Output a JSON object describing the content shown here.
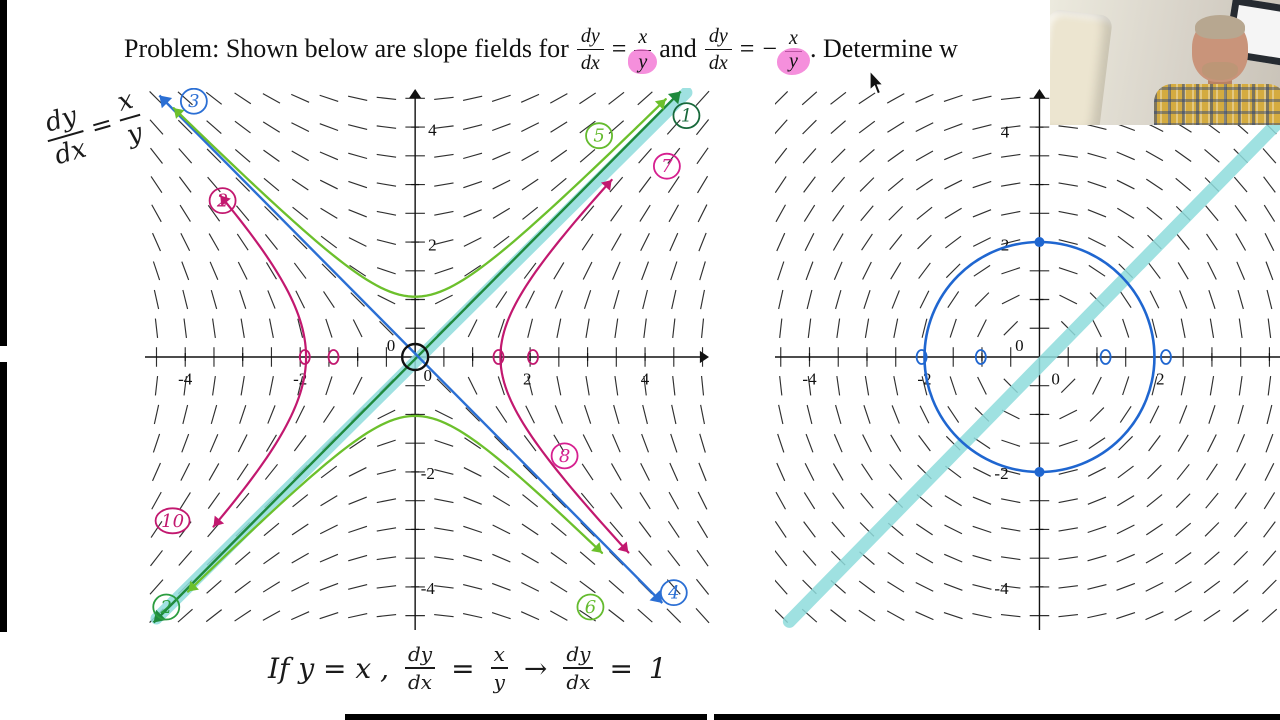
{
  "title": {
    "prefix": "Problem: Shown below are slope fields for",
    "frac1": {
      "num": "dy",
      "den": "dx"
    },
    "eq1": "=",
    "frac2": {
      "num": "x",
      "den": "y"
    },
    "and": "and",
    "frac3": {
      "num": "dy",
      "den": "dx"
    },
    "eq2": "=",
    "minus": "−",
    "frac4": {
      "num": "x",
      "den": "y"
    },
    "suffix": ".  Determine w"
  },
  "hand_topleft": {
    "num": "dy",
    "den": "dx",
    "eq": "=",
    "rnum": "x",
    "rden": "y"
  },
  "hand_bottom": {
    "lead": "If  y = x ,",
    "f1num": "dy",
    "f1den": "dx",
    "eq1": "=",
    "f2num": "x",
    "f2den": "y",
    "arrow": "→",
    "f3num": "dy",
    "f3den": "dx",
    "eq2": "=",
    "result": "1"
  },
  "highlight_color": "#f26ad0",
  "marker_color": "#8fdcdc",
  "chart_data": [
    {
      "type": "slope_field",
      "equation": "dy/dx = x/y",
      "slope": "x/y",
      "xlim": [
        -4.7,
        5.13
      ],
      "ylim": [
        -4.75,
        4.68
      ],
      "ticks": [
        -4,
        -3,
        -2,
        -1,
        1,
        2,
        3,
        4
      ],
      "axis_labels": [
        {
          "text": "-4",
          "x": -4,
          "y": -0.48
        },
        {
          "text": "-2",
          "x": -2,
          "y": -0.48
        },
        {
          "text": "2",
          "x": 1.95,
          "y": -0.48
        },
        {
          "text": "4",
          "x": 4,
          "y": -0.48
        },
        {
          "text": "0",
          "x": 0.22,
          "y": -0.42
        },
        {
          "text": "0",
          "x": -0.42,
          "y": 0.1
        },
        {
          "text": "4",
          "x": 0.3,
          "y": 3.85
        },
        {
          "text": "2",
          "x": 0.3,
          "y": 1.85
        },
        {
          "text": "-2",
          "x": 0.22,
          "y": -2.12
        },
        {
          "text": "-4",
          "x": 0.22,
          "y": -4.12
        }
      ],
      "overlays": [
        {
          "kind": "highlight_line",
          "from": [
            -4.5,
            -4.55
          ],
          "to": [
            4.72,
            4.6
          ],
          "color": "#8fdcdc",
          "width": 12
        },
        {
          "kind": "line_arrow_both",
          "from": [
            -4.55,
            -4.62
          ],
          "to": [
            4.62,
            4.62
          ],
          "color": "#1f8a3d",
          "width": 2.4
        },
        {
          "kind": "line_arrow_both",
          "from": [
            -4.45,
            4.55
          ],
          "to": [
            4.3,
            -4.28
          ],
          "color": "#2b6fd4",
          "width": 2.4
        },
        {
          "kind": "hyperbola_y",
          "c": 1.1,
          "sign": 1,
          "min": -4.2,
          "max": 4.4,
          "color": "#6cc02c",
          "width": 2.3,
          "arrows": true
        },
        {
          "kind": "hyperbola_y",
          "c": 1.05,
          "sign": -1,
          "min": -3.95,
          "max": 3.25,
          "color": "#6cc02c",
          "width": 2.3,
          "arrows": true
        },
        {
          "kind": "hyperbola_x",
          "c": 3.6,
          "sign": -1,
          "min": -2.95,
          "max": 2.85,
          "color": "#c2186f",
          "width": 2.2,
          "arrows": true
        },
        {
          "kind": "hyperbola_x",
          "c": 2.2,
          "sign": 1,
          "min": -3.4,
          "max": 3.15,
          "color": "#c2186f",
          "width": 2.2,
          "arrows": true
        },
        {
          "kind": "small_ring",
          "x": -1.92,
          "y": 0,
          "color": "#c2186f"
        },
        {
          "kind": "small_ring",
          "x": -1.42,
          "y": 0,
          "color": "#c2186f"
        },
        {
          "kind": "small_ring",
          "x": 1.45,
          "y": 0,
          "color": "#c2186f"
        },
        {
          "kind": "small_ring",
          "x": 2.05,
          "y": 0,
          "color": "#c2186f"
        },
        {
          "kind": "ring",
          "x": 0,
          "y": 0,
          "rpx": 13,
          "color": "#111"
        }
      ],
      "labels": [
        {
          "text": "3",
          "x": -3.85,
          "y": 4.45,
          "color": "#2b6fd4"
        },
        {
          "text": "5",
          "x": 3.2,
          "y": 3.85,
          "color": "#64bb2e"
        },
        {
          "text": "1",
          "x": 4.72,
          "y": 4.2,
          "color": "#17683a"
        },
        {
          "text": "7",
          "x": 4.38,
          "y": 3.32,
          "color": "#d61f8f"
        },
        {
          "text": "2",
          "x": -3.35,
          "y": 2.72,
          "color": "#c2186f"
        },
        {
          "text": "10",
          "x": -4.22,
          "y": -2.85,
          "color": "#c2186f"
        },
        {
          "text": "2",
          "x": -4.33,
          "y": -4.35,
          "color": "#2a9d3f"
        },
        {
          "text": "8",
          "x": 2.6,
          "y": -1.72,
          "color": "#d61f8f"
        },
        {
          "text": "6",
          "x": 3.05,
          "y": -4.35,
          "color": "#64bb2e"
        },
        {
          "text": "4",
          "x": 4.5,
          "y": -4.1,
          "color": "#2b6fd4"
        }
      ]
    },
    {
      "type": "slope_field",
      "equation": "dy/dx = -x/y",
      "slope": "-x/y",
      "xlim": [
        -4.6,
        5.21
      ],
      "ylim": [
        -4.75,
        4.68
      ],
      "ticks": [
        -4,
        -3,
        -2,
        -1,
        1,
        2,
        3,
        4
      ],
      "axis_labels": [
        {
          "text": "-4",
          "x": -4,
          "y": -0.48
        },
        {
          "text": "-2",
          "x": -2,
          "y": -0.48
        },
        {
          "text": "0",
          "x": 0.28,
          "y": -0.48
        },
        {
          "text": "2",
          "x": 2.1,
          "y": -0.48
        },
        {
          "text": "4",
          "x": -0.6,
          "y": 3.82
        },
        {
          "text": "2",
          "x": -0.6,
          "y": 1.85
        },
        {
          "text": "0",
          "x": -0.35,
          "y": 0.1
        },
        {
          "text": "-2",
          "x": -0.66,
          "y": -2.12
        },
        {
          "text": "-4",
          "x": -0.66,
          "y": -4.12
        }
      ],
      "overlays": [
        {
          "kind": "highlight_line",
          "from": [
            -4.35,
            -4.6
          ],
          "to": [
            5.0,
            4.95
          ],
          "color": "#8fdcdc",
          "width": 13
        },
        {
          "kind": "circle",
          "cx": 0,
          "cy": 0,
          "r": 2,
          "color": "#1f66d0",
          "width": 2.6
        },
        {
          "kind": "dot",
          "x": 0,
          "y": 2,
          "color": "#1f66d0"
        },
        {
          "kind": "dot",
          "x": 0,
          "y": -2,
          "color": "#1f66d0"
        },
        {
          "kind": "small_ring",
          "x": -2.05,
          "y": 0,
          "color": "#1f66d0"
        },
        {
          "kind": "small_ring",
          "x": -1.02,
          "y": 0,
          "color": "#1f66d0"
        },
        {
          "kind": "small_ring",
          "x": 1.15,
          "y": 0,
          "color": "#1f66d0"
        },
        {
          "kind": "small_ring",
          "x": 2.2,
          "y": 0,
          "color": "#1f66d0"
        }
      ],
      "labels": []
    }
  ]
}
